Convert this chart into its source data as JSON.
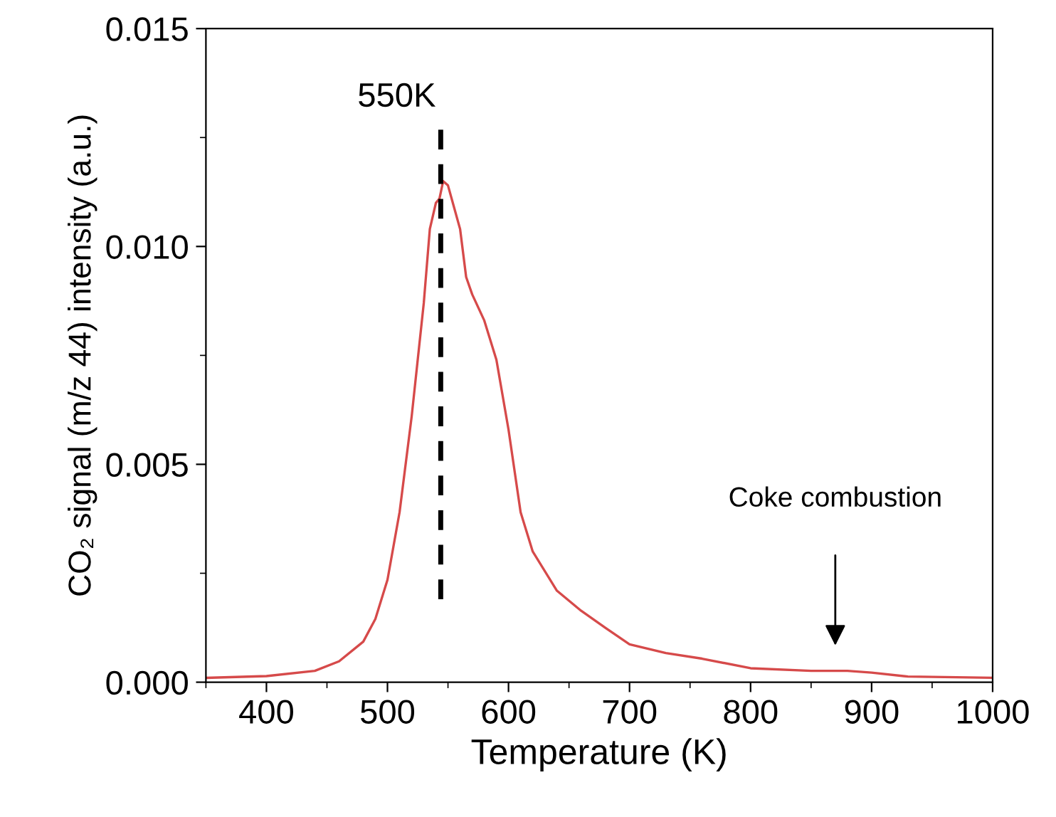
{
  "chart_data": {
    "type": "line",
    "xlabel": "Temperature (K)",
    "ylabel": "CO₂ signal (m/z 44) intensity (a.u.)",
    "xlim": [
      350,
      1000
    ],
    "xticks": [
      400,
      500,
      600,
      700,
      800,
      900,
      1000
    ],
    "ylim": [
      0,
      0.015
    ],
    "yticks": [
      {
        "value": 0,
        "label": "0.000"
      },
      {
        "value": 0.005,
        "label": "0.005"
      },
      {
        "value": 0.01,
        "label": "0.010"
      },
      {
        "value": 0.015,
        "label": "0.015"
      }
    ],
    "grid": false,
    "legend": false,
    "marker": "none",
    "line_style": "solid",
    "series": [
      {
        "color": "#d64a4a",
        "x": [
          350,
          400,
          440,
          460,
          480,
          490,
          500,
          510,
          520,
          530,
          535,
          540,
          543,
          546,
          550,
          555,
          560,
          565,
          570,
          580,
          590,
          600,
          610,
          620,
          640,
          660,
          680,
          700,
          730,
          760,
          800,
          850,
          880,
          900,
          930,
          1000
        ],
        "values": [
          0.0001,
          0.00014,
          0.00026,
          0.00048,
          0.00093,
          0.00145,
          0.00235,
          0.0039,
          0.0061,
          0.0087,
          0.0104,
          0.011,
          0.0111,
          0.0115,
          0.0114,
          0.0109,
          0.0104,
          0.0093,
          0.0089,
          0.0083,
          0.0074,
          0.0058,
          0.0039,
          0.003,
          0.0021,
          0.00164,
          0.00125,
          0.00087,
          0.00067,
          0.00054,
          0.00032,
          0.00026,
          0.00026,
          0.00022,
          0.00013,
          0.0001
        ]
      }
    ],
    "ref_lines": [
      {
        "axis": "x",
        "value": 544,
        "label": "550K",
        "color": "#000000",
        "line_style": "dashed"
      }
    ],
    "annotations": [
      "Coke combustion"
    ]
  }
}
